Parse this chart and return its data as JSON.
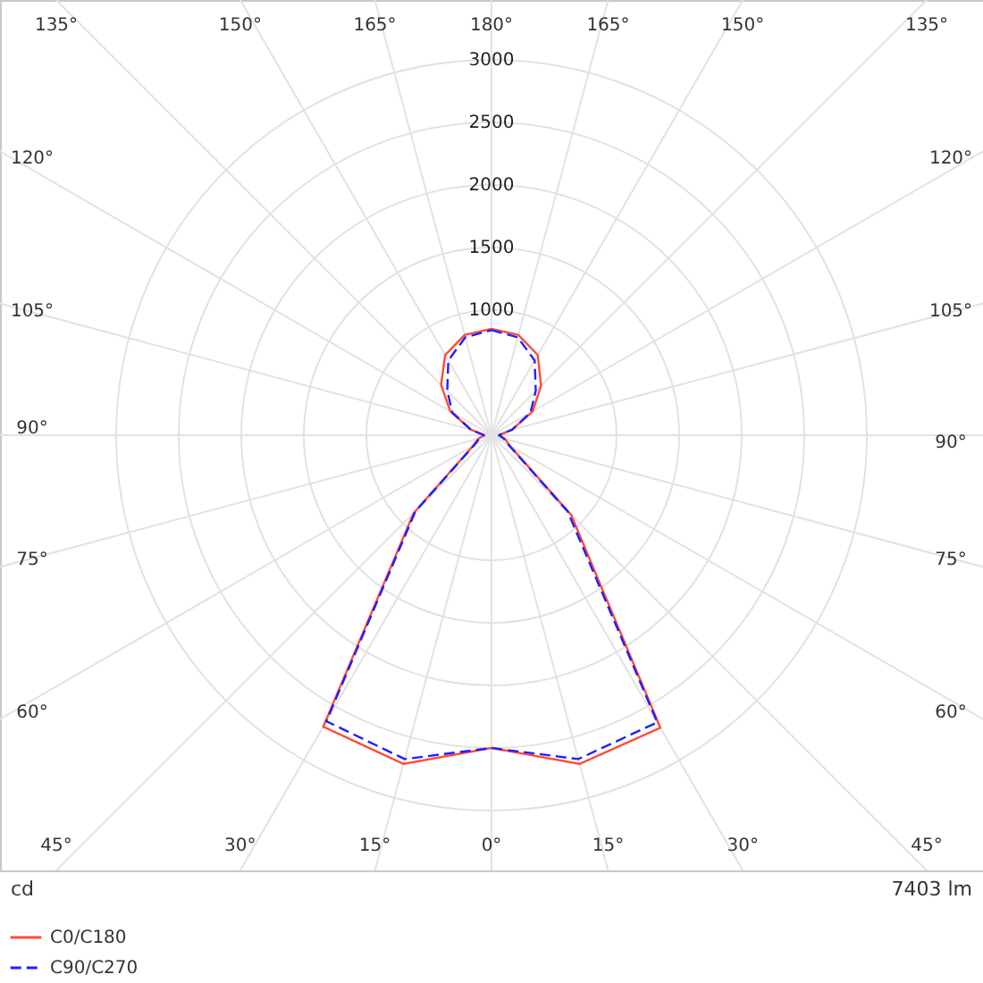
{
  "chart_data": {
    "type": "radar",
    "categories": [
      "180°",
      "165°",
      "150°",
      "135°",
      "120°",
      "105°",
      "90°",
      "75°",
      "60°",
      "45°",
      "30°",
      "15°",
      "0°",
      "15°",
      "30°",
      "45°",
      "60°",
      "75°",
      "90°",
      "105°",
      "120°",
      "135°",
      "150°",
      "165°"
    ],
    "series": [
      {
        "name": "C0/C180",
        "color": "#ff4a3a",
        "line_style": "solid",
        "values": [
          850,
          830,
          740,
          560,
          380,
          170,
          60,
          110,
          170,
          900,
          2700,
          2720,
          2500,
          2720,
          2690,
          880,
          170,
          110,
          60,
          170,
          380,
          570,
          740,
          830
        ]
      },
      {
        "name": "C90/C270",
        "color": "#2020ff",
        "line_style": "dashed",
        "values": [
          840,
          810,
          690,
          500,
          360,
          170,
          60,
          100,
          160,
          860,
          2650,
          2680,
          2500,
          2680,
          2640,
          860,
          160,
          100,
          60,
          170,
          360,
          500,
          690,
          810
        ]
      }
    ],
    "ylim": [
      0,
      3000
    ],
    "yticks": [
      1000,
      1500,
      2000,
      2500,
      3000
    ],
    "grid": true,
    "legend": "bottom left",
    "annotations": [
      "cd",
      "7403 lm"
    ]
  }
}
